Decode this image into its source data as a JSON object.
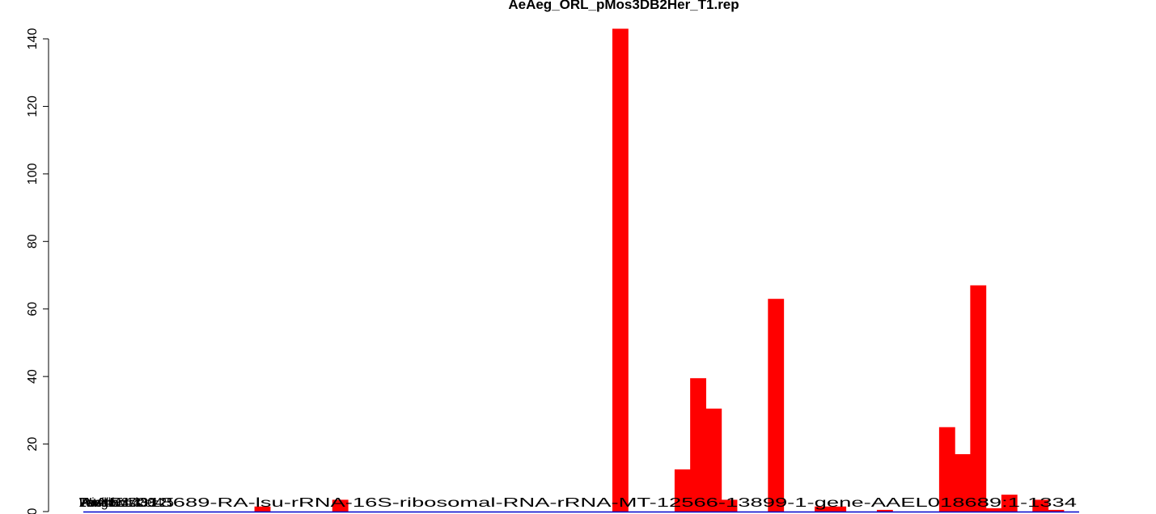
{
  "chart_data": {
    "type": "bar",
    "title": "AeAeg_ORL_pMos3DB2Her_T1.rep",
    "xlabel": "",
    "ylabel": "",
    "ylim": [
      0,
      145
    ],
    "yticks": [
      "0",
      "20",
      "40",
      "60",
      "80",
      "100",
      "120",
      "140"
    ],
    "grid": false,
    "legend": "none",
    "bar_color": "#ff0000",
    "baseline_color": "#0000cc",
    "overlapping_labels": [
      "Window size=25",
      "Position=430",
      "Length=13334",
      "Total=437",
      "AAEL018689-RA-lsu-rRNA-16S-ribosomal-RNA-rRNA-MT-12566-13899-1-gene-AAEL018689:1-1334"
    ],
    "values": [
      0,
      0,
      0,
      0,
      0,
      0,
      0,
      0,
      0,
      0,
      0,
      1.5,
      0,
      0,
      0,
      0,
      3.5,
      0,
      0,
      0,
      0,
      0,
      0,
      0,
      0,
      0,
      0,
      0,
      0,
      0,
      0,
      0,
      0,
      0,
      143,
      0,
      0,
      0,
      12.5,
      39.5,
      30.5,
      3.5,
      0,
      0,
      63,
      0,
      0,
      1.5,
      1.5,
      0,
      0,
      0.5,
      0,
      0,
      0,
      25,
      17,
      67,
      1,
      5,
      0,
      3.5,
      0.5,
      0
    ]
  }
}
